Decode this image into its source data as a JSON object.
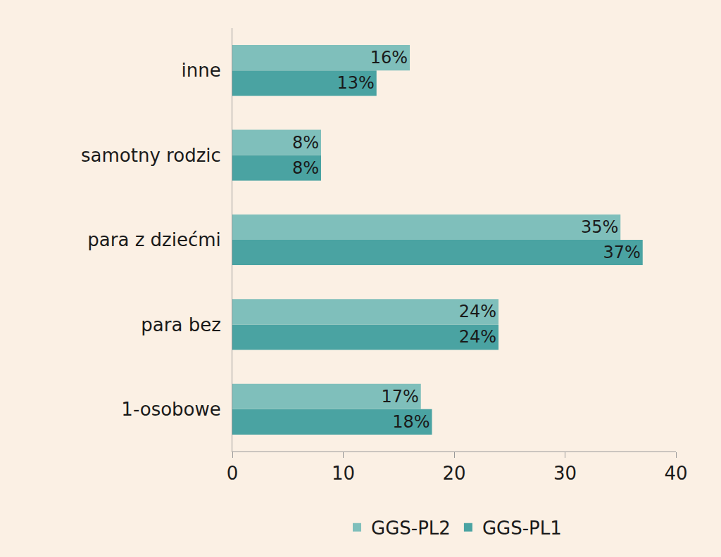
{
  "chart_data": {
    "type": "bar",
    "orientation": "horizontal",
    "categories": [
      "1-osobowe",
      "para bez",
      "para z dziećmi",
      "samotny rodzic",
      "inne"
    ],
    "series": [
      {
        "name": "GGS-PL1",
        "color": "#4aa3a2",
        "values": [
          18,
          24,
          37,
          8,
          13
        ],
        "value_labels": [
          "18%",
          "24%",
          "37%",
          "8%",
          "13%"
        ]
      },
      {
        "name": "GGS-PL2",
        "color": "#7fbfbb",
        "values": [
          17,
          24,
          35,
          8,
          16
        ],
        "value_labels": [
          "17%",
          "24%",
          "35%",
          "8%",
          "16%"
        ]
      }
    ],
    "xlim": [
      0,
      40
    ],
    "xticks": [
      0,
      10,
      20,
      30,
      40
    ],
    "grid": false,
    "data_labels": true,
    "legend": "bottom"
  }
}
